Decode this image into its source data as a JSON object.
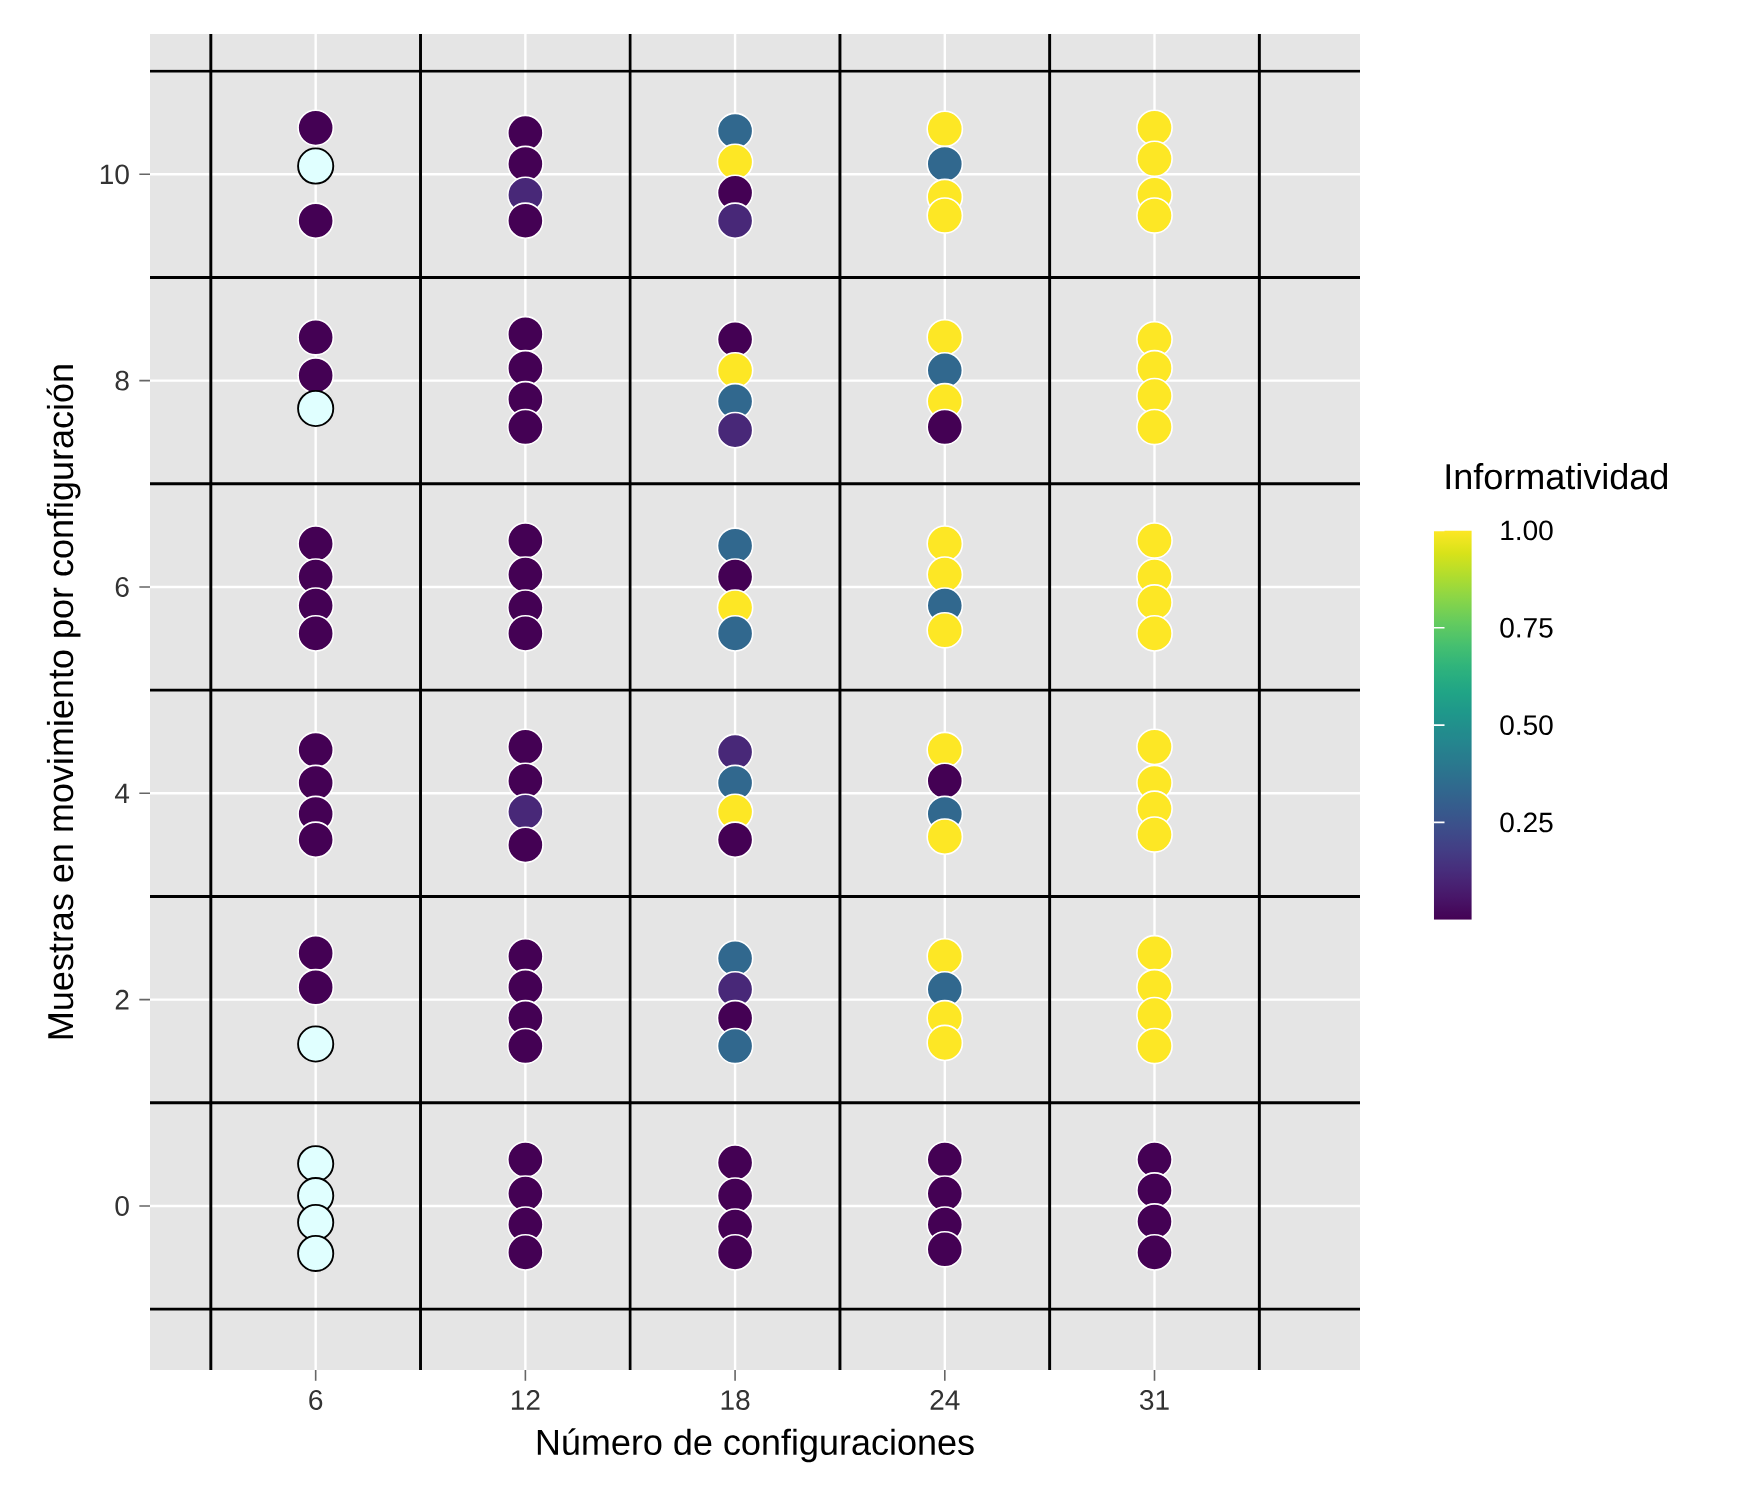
{
  "chart_data": {
    "type": "scatter",
    "xlabel": "Número de configuraciones",
    "ylabel": "Muestras en movimiento por configuración",
    "clabel": "Informatividad",
    "marker": "circle",
    "grid": true,
    "categories": [
      "6",
      "12",
      "18",
      "24",
      "31"
    ],
    "ylim": [
      -1.59,
      11.36
    ],
    "yticks": [
      0,
      2,
      4,
      6,
      8,
      10
    ],
    "clim": [
      0,
      1
    ],
    "cticks": [
      0.25,
      {
        "value": 0.5,
        "label": "0.50"
      },
      0.75,
      {
        "value": 1,
        "label": "1.00"
      }
    ],
    "ref_lines": [
      {
        "axis": "y",
        "value": -1,
        "color": "#000000"
      },
      {
        "axis": "y",
        "value": 1,
        "color": "#000000"
      },
      {
        "axis": "y",
        "value": 3,
        "color": "#000000"
      },
      {
        "axis": "y",
        "value": 5,
        "color": "#000000"
      },
      {
        "axis": "y",
        "value": 7,
        "color": "#000000"
      },
      {
        "axis": "y",
        "value": 9,
        "color": "#000000"
      },
      {
        "axis": "y",
        "value": 11,
        "color": "#000000"
      }
    ],
    "series": [
      {
        "values": [
          10.45,
          10.4,
          10.42,
          10.44,
          10.45
        ],
        "colors": [
          "#440154",
          "#440154",
          "#31688e",
          "#fde725",
          "#fde725"
        ]
      },
      {
        "values": [
          null,
          10.1,
          10.12,
          10.1,
          10.15
        ],
        "colors": [
          "#440154",
          "#440154",
          "#fde725",
          "#31688e",
          "#fde725"
        ]
      },
      {
        "values": [
          null,
          9.8,
          9.82,
          9.78,
          9.8
        ],
        "colors": [
          "#440154",
          "#482878",
          "#440154",
          "#fde725",
          "#fde725"
        ]
      },
      {
        "values": [
          9.55,
          9.55,
          9.55,
          9.6,
          9.6
        ],
        "colors": [
          "#440154",
          "#440154",
          "#482878",
          "#fde725",
          "#fde725"
        ]
      },
      {
        "values": [
          8.42,
          8.45,
          8.4,
          8.42,
          8.4
        ],
        "colors": [
          "#440154",
          "#440154",
          "#440154",
          "#fde725",
          "#fde725"
        ]
      },
      {
        "values": [
          8.05,
          8.12,
          8.1,
          8.1,
          8.12
        ],
        "colors": [
          "#440154",
          "#440154",
          "#fde725",
          "#31688e",
          "#fde725"
        ]
      },
      {
        "values": [
          null,
          7.82,
          7.8,
          7.8,
          7.85
        ],
        "colors": [
          "#440154",
          "#440154",
          "#31688e",
          "#fde725",
          "#fde725"
        ]
      },
      {
        "values": [
          null,
          7.55,
          7.52,
          7.55,
          7.55
        ],
        "colors": [
          "#440154",
          "#440154",
          "#482878",
          "#440154",
          "#fde725"
        ]
      },
      {
        "values": [
          6.42,
          6.45,
          6.4,
          6.42,
          6.45
        ],
        "colors": [
          "#440154",
          "#440154",
          "#31688e",
          "#fde725",
          "#fde725"
        ]
      },
      {
        "values": [
          6.1,
          6.12,
          6.1,
          6.12,
          6.1
        ],
        "colors": [
          "#440154",
          "#440154",
          "#440154",
          "#fde725",
          "#fde725"
        ]
      },
      {
        "values": [
          5.82,
          5.8,
          5.8,
          5.82,
          5.85
        ],
        "colors": [
          "#440154",
          "#440154",
          "#fde725",
          "#31688e",
          "#fde725"
        ]
      },
      {
        "values": [
          5.55,
          5.55,
          5.55,
          5.58,
          5.55
        ],
        "colors": [
          "#440154",
          "#440154",
          "#31688e",
          "#fde725",
          "#fde725"
        ]
      },
      {
        "values": [
          4.42,
          4.45,
          4.4,
          4.42,
          4.45
        ],
        "colors": [
          "#440154",
          "#440154",
          "#482878",
          "#fde725",
          "#fde725"
        ]
      },
      {
        "values": [
          4.1,
          4.12,
          4.1,
          4.12,
          4.1
        ],
        "colors": [
          "#440154",
          "#440154",
          "#31688e",
          "#440154",
          "#fde725"
        ]
      },
      {
        "values": [
          3.8,
          3.82,
          3.82,
          3.8,
          3.85
        ],
        "colors": [
          "#440154",
          "#482878",
          "#fde725",
          "#31688e",
          "#fde725"
        ]
      },
      {
        "values": [
          3.55,
          3.5,
          3.55,
          3.58,
          3.6
        ],
        "colors": [
          "#440154",
          "#440154",
          "#440154",
          "#fde725",
          "#fde725"
        ]
      },
      {
        "values": [
          2.45,
          2.42,
          2.4,
          2.42,
          2.45
        ],
        "colors": [
          "#440154",
          "#440154",
          "#31688e",
          "#fde725",
          "#fde725"
        ]
      },
      {
        "values": [
          2.12,
          2.12,
          2.1,
          2.1,
          2.12
        ],
        "colors": [
          "#440154",
          "#440154",
          "#482878",
          "#31688e",
          "#fde725"
        ]
      },
      {
        "values": [
          null,
          1.82,
          1.82,
          1.82,
          1.85
        ],
        "colors": [
          "#440154",
          "#440154",
          "#440154",
          "#fde725",
          "#fde725"
        ]
      },
      {
        "values": [
          null,
          1.55,
          1.55,
          1.58,
          1.55
        ],
        "colors": [
          "#440154",
          "#440154",
          "#31688e",
          "#fde725",
          "#fde725"
        ]
      },
      {
        "values": [
          null,
          0.45,
          0.42,
          0.45,
          0.45
        ],
        "colors": [
          "#440154",
          "#440154",
          "#440154",
          "#440154",
          "#440154"
        ]
      },
      {
        "values": [
          null,
          0.12,
          0.1,
          0.12,
          0.15
        ],
        "colors": [
          "#440154",
          "#440154",
          "#440154",
          "#440154",
          "#440154"
        ]
      },
      {
        "values": [
          null,
          -0.18,
          -0.2,
          -0.18,
          -0.15
        ],
        "colors": [
          "#440154",
          "#440154",
          "#440154",
          "#440154",
          "#440154"
        ]
      },
      {
        "values": [
          null,
          -0.45,
          -0.45,
          -0.42,
          -0.45
        ],
        "colors": [
          "#440154",
          "#440154",
          "#440154",
          "#440154",
          "#440154"
        ]
      },
      {
        "color": "#e0ffff",
        "values": [
          10.08,
          null,
          null,
          null,
          null
        ]
      },
      {
        "color": "#e0ffff",
        "values": [
          7.73,
          null,
          null,
          null,
          null
        ]
      },
      {
        "color": "#e0ffff",
        "values": [
          1.57,
          null,
          null,
          null,
          null
        ]
      },
      {
        "color": "#e0ffff",
        "values": [
          0.41,
          null,
          null,
          null,
          null
        ]
      },
      {
        "color": "#e0ffff",
        "values": [
          0.1,
          null,
          null,
          null,
          null
        ]
      },
      {
        "color": "#e0ffff",
        "values": [
          -0.16,
          null,
          null,
          null,
          null
        ]
      },
      {
        "color": "#e0ffff",
        "values": [
          -0.46,
          null,
          null,
          null,
          null
        ]
      }
    ]
  }
}
